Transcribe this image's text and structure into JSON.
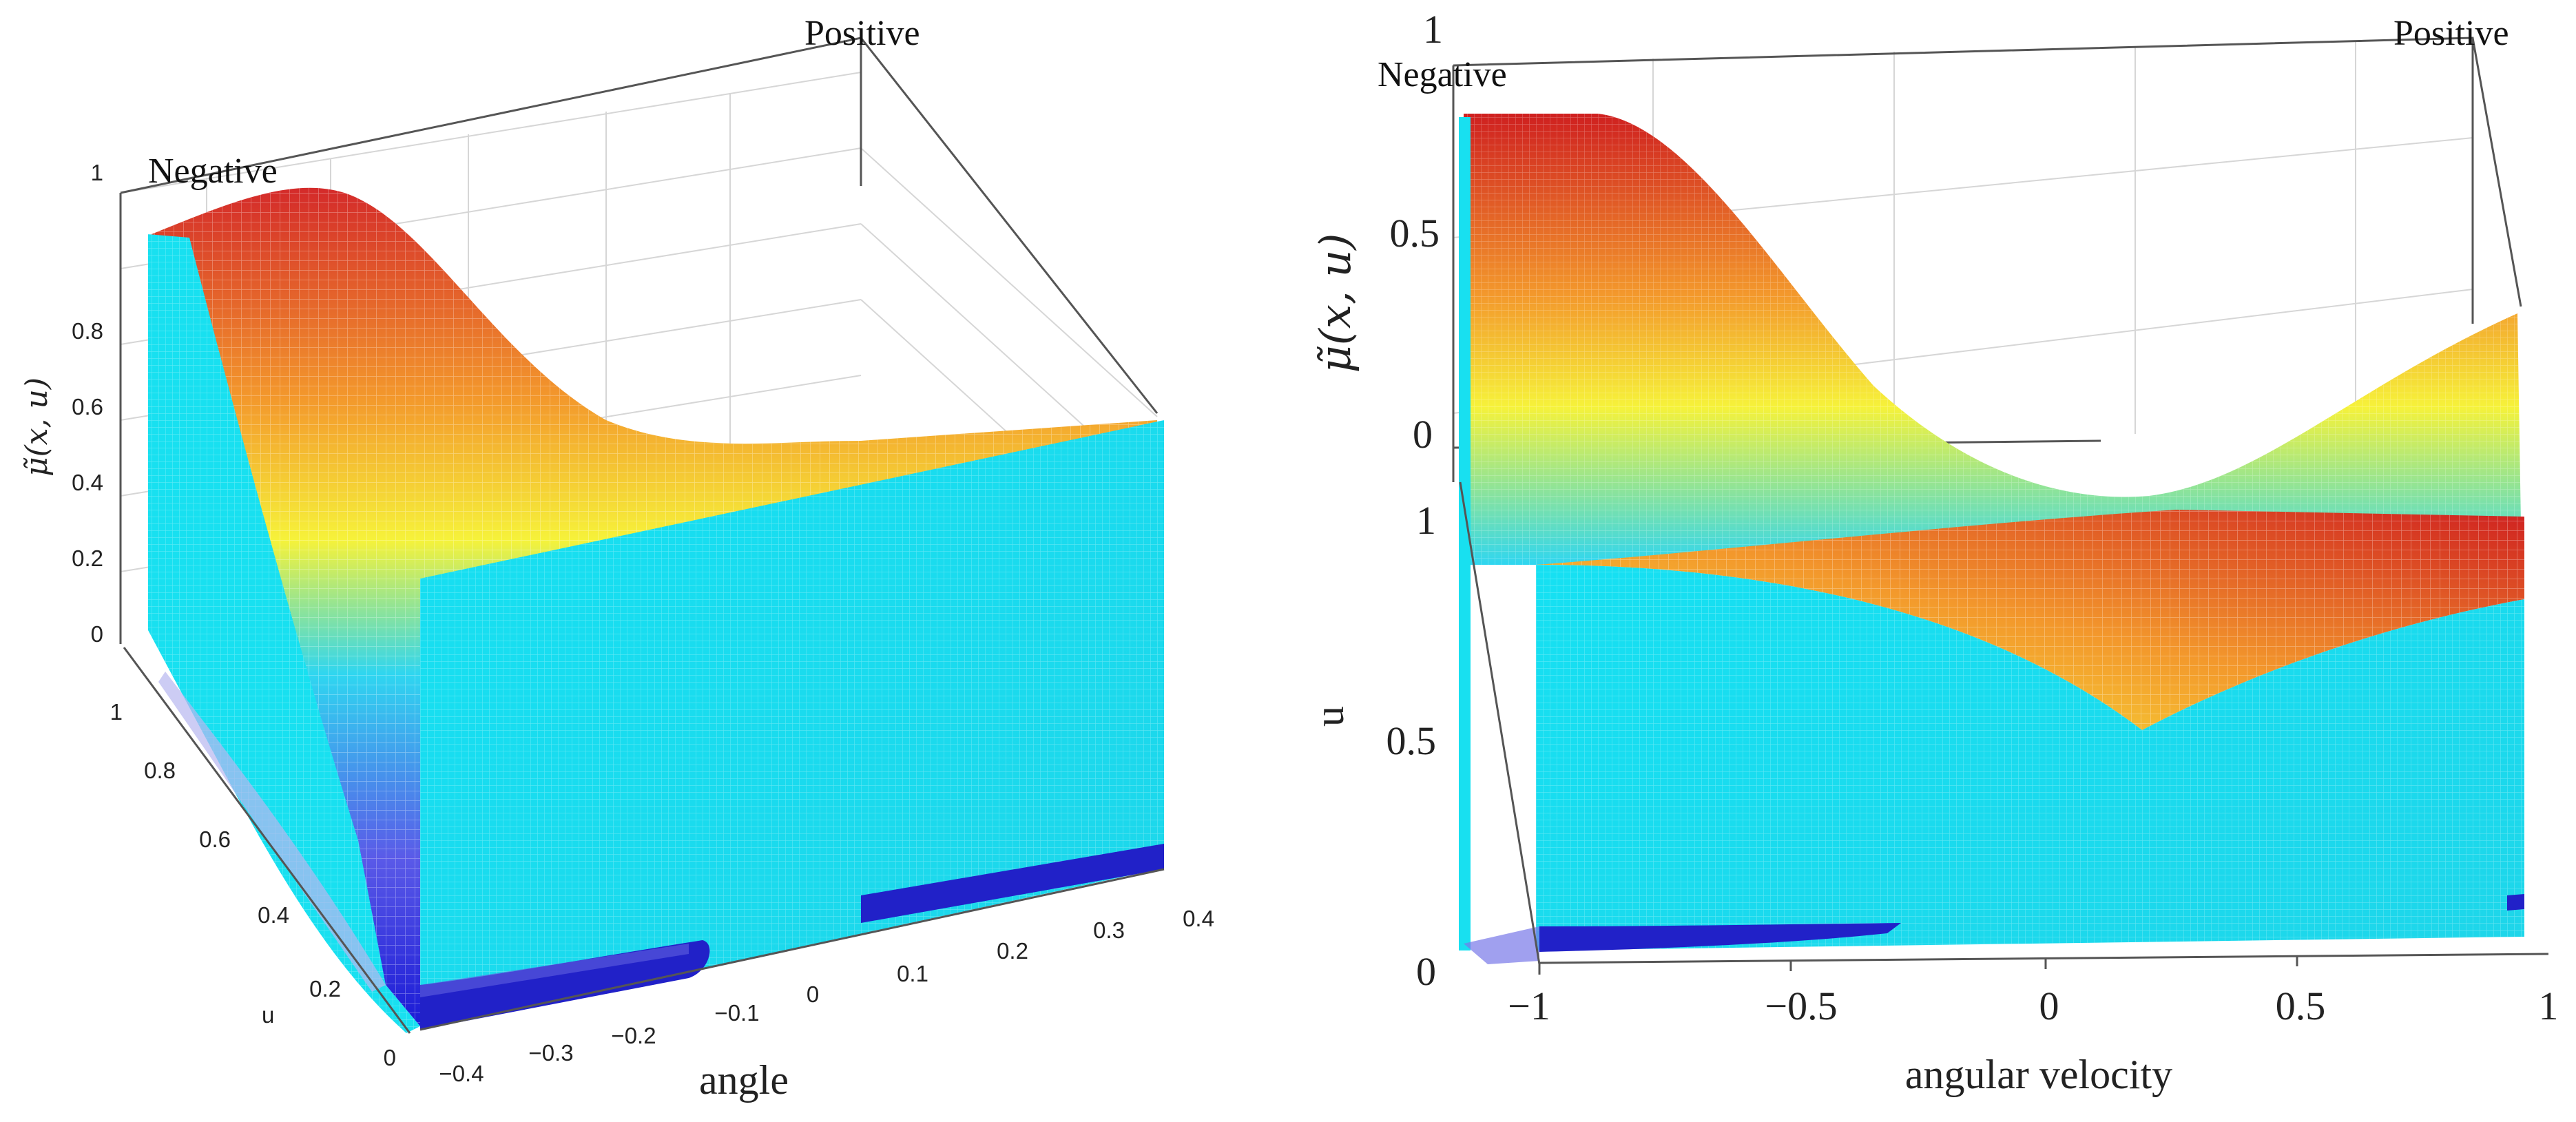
{
  "chart_data": [
    {
      "type": "surface",
      "panel": "left",
      "xlabel": "angle",
      "ylabel": "u",
      "zlabel": "μ̃(x, u)",
      "x_ticks": [
        "−0.4",
        "−0.3",
        "−0.2",
        "−0.1",
        "0",
        "0.1",
        "0.2",
        "0.3",
        "0.4"
      ],
      "y_ticks": [
        "0",
        "0.2",
        "0.4",
        "0.6",
        "0.8",
        "1"
      ],
      "z_ticks": [
        "0",
        "0.2",
        "0.4",
        "0.6",
        "0.8",
        "1"
      ],
      "xlim": [
        -0.4,
        0.4
      ],
      "ylim": [
        0,
        1
      ],
      "zlim": [
        0,
        1
      ],
      "corner_labels": {
        "negative": "Negative",
        "positive": "Positive"
      },
      "series": [
        {
          "name": "Negative",
          "description": "membership peaks ~0.9 at angle −0.4, falls to ~0 toward angle 0.4"
        },
        {
          "name": "Positive",
          "description": "membership ~0 at angle −0.4, rises toward angle 0.4"
        }
      ]
    },
    {
      "type": "surface",
      "panel": "right",
      "xlabel": "angular velocity",
      "ylabel": "u",
      "zlabel": "μ̃(x, u)",
      "x_ticks": [
        "−1",
        "−0.5",
        "0",
        "0.5",
        "1"
      ],
      "y_ticks": [
        "0",
        "0.5",
        "1"
      ],
      "z_ticks": [
        "0",
        "0.5",
        "1"
      ],
      "xlim": [
        -1,
        1
      ],
      "ylim": [
        0,
        1
      ],
      "zlim": [
        0,
        1
      ],
      "corner_labels": {
        "negative": "Negative",
        "positive": "Positive"
      },
      "series": [
        {
          "name": "Negative",
          "description": "membership ~0.9 at angular velocity −1, decreasing toward 1"
        },
        {
          "name": "Positive",
          "description": "membership ~0 at angular velocity −1, increasing toward 1"
        }
      ]
    }
  ]
}
